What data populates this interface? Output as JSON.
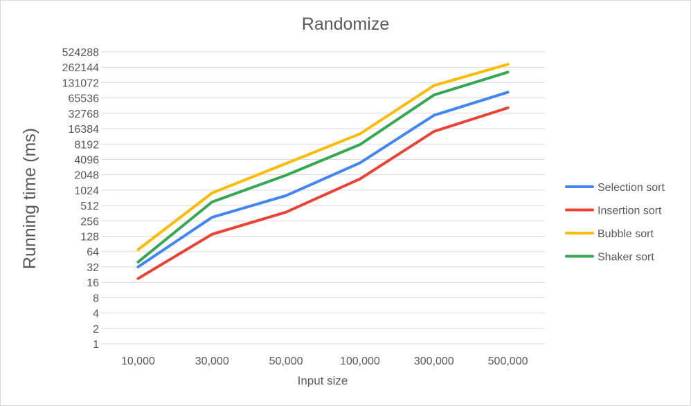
{
  "chart_data": {
    "type": "line",
    "title": "Randomize",
    "xlabel": "Input size",
    "ylabel": "Running time (ms)",
    "y_scale": "log2",
    "ylim": [
      1,
      524288
    ],
    "grid": true,
    "legend_position": "right",
    "categories": [
      "10,000",
      "30,000",
      "50,000",
      "100,000",
      "300,000",
      "500,000"
    ],
    "y_ticks": [
      "1",
      "2",
      "4",
      "8",
      "16",
      "32",
      "64",
      "128",
      "256",
      "512",
      "1024",
      "2048",
      "4096",
      "8192",
      "16384",
      "32768",
      "65536",
      "131072",
      "262144",
      "524288"
    ],
    "series": [
      {
        "name": "Selection sort",
        "color": "#4285F4",
        "values": [
          32,
          300,
          800,
          3500,
          30000,
          85000
        ]
      },
      {
        "name": "Insertion sort",
        "color": "#EA4335",
        "values": [
          19,
          140,
          380,
          1700,
          14500,
          42000
        ]
      },
      {
        "name": "Bubble sort",
        "color": "#FBBC04",
        "values": [
          70,
          900,
          3400,
          13000,
          115000,
          300000
        ]
      },
      {
        "name": "Shaker sort",
        "color": "#34A853",
        "values": [
          40,
          600,
          2000,
          8000,
          75000,
          210000
        ]
      }
    ]
  }
}
